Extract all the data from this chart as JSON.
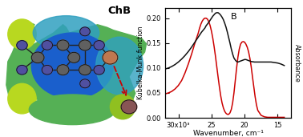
{
  "xlabel": "Wavenumber, cm⁻¹",
  "ylabel_left": "Kubelka-Munk function",
  "ylabel_right": "Absorbance",
  "xlim": [
    32000,
    13000
  ],
  "ylim": [
    0.0,
    0.22
  ],
  "yticks": [
    0.0,
    0.05,
    0.1,
    0.15,
    0.2
  ],
  "xtick_labels": [
    "30x10³",
    "25",
    "20",
    "15"
  ],
  "xtick_positions": [
    30000,
    25000,
    20000,
    15000
  ],
  "black_curve_x": [
    32000,
    31500,
    31000,
    30500,
    30000,
    29500,
    29000,
    28500,
    28000,
    27500,
    27000,
    26500,
    26000,
    25800,
    25500,
    25200,
    25000,
    24800,
    24600,
    24400,
    24200,
    24000,
    23800,
    23600,
    23400,
    23200,
    23000,
    22800,
    22600,
    22400,
    22200,
    22000,
    21800,
    21600,
    21400,
    21200,
    21000,
    20800,
    20600,
    20400,
    20200,
    20000,
    19800,
    19600,
    19400,
    19200,
    19000,
    18500,
    18000,
    17500,
    17000,
    16500,
    16000,
    15500,
    15000,
    14500,
    14000
  ],
  "black_curve_y": [
    0.098,
    0.1,
    0.103,
    0.107,
    0.112,
    0.118,
    0.125,
    0.133,
    0.142,
    0.152,
    0.162,
    0.172,
    0.18,
    0.185,
    0.19,
    0.196,
    0.2,
    0.204,
    0.207,
    0.21,
    0.211,
    0.211,
    0.209,
    0.206,
    0.202,
    0.197,
    0.19,
    0.182,
    0.172,
    0.161,
    0.15,
    0.138,
    0.128,
    0.12,
    0.116,
    0.113,
    0.112,
    0.113,
    0.114,
    0.115,
    0.116,
    0.117,
    0.117,
    0.116,
    0.115,
    0.114,
    0.113,
    0.112,
    0.112,
    0.112,
    0.112,
    0.112,
    0.112,
    0.111,
    0.11,
    0.108,
    0.105
  ],
  "red_curve_x": [
    32000,
    31500,
    31000,
    30500,
    30000,
    29500,
    29000,
    28500,
    28000,
    27500,
    27000,
    26800,
    26600,
    26400,
    26200,
    26000,
    25800,
    25600,
    25400,
    25200,
    25000,
    24800,
    24600,
    24400,
    24200,
    24000,
    23800,
    23600,
    23400,
    23200,
    23000,
    22800,
    22600,
    22400,
    22200,
    22000,
    21800,
    21600,
    21400,
    21200,
    21000,
    20800,
    20600,
    20400,
    20200,
    20000,
    19800,
    19600,
    19400,
    19200,
    19000,
    18800,
    18600,
    18400,
    18200,
    18000,
    17500,
    17000,
    16500,
    16000,
    15500,
    15000,
    14500,
    14000
  ],
  "red_curve_y": [
    0.048,
    0.05,
    0.053,
    0.058,
    0.065,
    0.075,
    0.09,
    0.108,
    0.128,
    0.15,
    0.17,
    0.18,
    0.188,
    0.194,
    0.198,
    0.2,
    0.2,
    0.198,
    0.193,
    0.185,
    0.174,
    0.16,
    0.143,
    0.124,
    0.103,
    0.082,
    0.062,
    0.044,
    0.03,
    0.02,
    0.013,
    0.009,
    0.007,
    0.007,
    0.01,
    0.017,
    0.03,
    0.05,
    0.075,
    0.1,
    0.122,
    0.138,
    0.148,
    0.152,
    0.153,
    0.152,
    0.148,
    0.142,
    0.133,
    0.12,
    0.103,
    0.082,
    0.062,
    0.042,
    0.026,
    0.015,
    0.005,
    0.002,
    0.001,
    0.001,
    0.001,
    0.001,
    0.001,
    0.001
  ],
  "background_color": "#ffffff",
  "black_color": "#111111",
  "red_color": "#cc0000",
  "panel_label": "B",
  "chb_label": "ChB",
  "mol_bg_color": "#5cb85c",
  "esp_blue_color": "#1a5fcc",
  "esp_cyan_color": "#30a0c0",
  "esp_green_color": "#55b055",
  "esp_yellow_color": "#b8d820",
  "bond_color": "#222222",
  "atom_gray": "#606060",
  "atom_blue": "#5050a0",
  "atom_se": "#c07850",
  "atom_halide": "#885555",
  "arrow_color": "#cc0000"
}
